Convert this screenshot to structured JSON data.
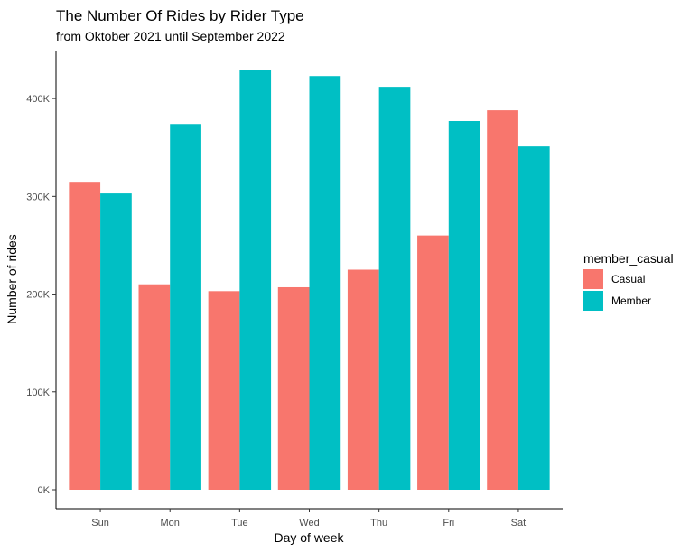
{
  "chart_data": {
    "type": "bar",
    "title": "The Number Of Rides by Rider Type",
    "subtitle": "from Oktober 2021 until September 2022",
    "xlabel": "Day of week",
    "ylabel": "Number of rides",
    "categories": [
      "Sun",
      "Mon",
      "Tue",
      "Wed",
      "Thu",
      "Fri",
      "Sat"
    ],
    "series": [
      {
        "name": "Casual",
        "color": "#F8766D",
        "values": [
          314000,
          210000,
          203000,
          207000,
          225000,
          260000,
          388000
        ]
      },
      {
        "name": "Member",
        "color": "#00BFC4",
        "values": [
          303000,
          374000,
          429000,
          423000,
          412000,
          377000,
          351000
        ]
      }
    ],
    "ylim": [
      0,
      450000
    ],
    "yticks": [
      {
        "value": 0,
        "label": "0K"
      },
      {
        "value": 100000,
        "label": "100K"
      },
      {
        "value": 200000,
        "label": "200K"
      },
      {
        "value": 300000,
        "label": "300K"
      },
      {
        "value": 400000,
        "label": "400K"
      }
    ],
    "legend": {
      "title": "member_casual",
      "position": "right"
    },
    "grid": false
  }
}
